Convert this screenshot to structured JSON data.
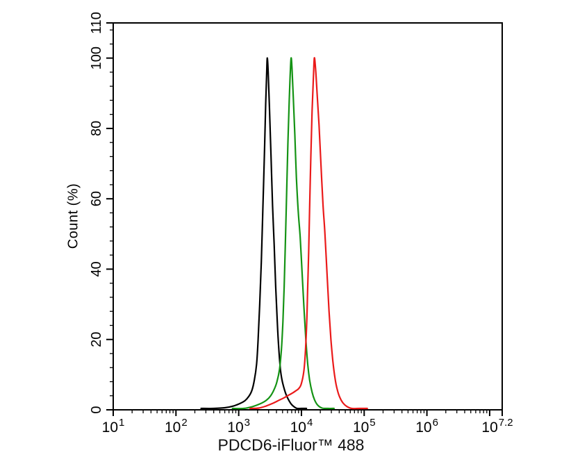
{
  "figure": {
    "background": "#ffffff"
  },
  "chart_data": {
    "type": "line",
    "subtype": "flow-cytometry-histogram-overlay",
    "title": "",
    "xlabel": "PDCD6-iFluor™ 488",
    "ylabel": "Count (%)",
    "x_scale": "log10",
    "x_units": "fluorescence intensity (log10)",
    "xlim_log10": [
      1,
      7.2
    ],
    "ylim": [
      0,
      110
    ],
    "grid": false,
    "legend": "none",
    "x_major_ticks_log10": [
      1,
      2,
      3,
      4,
      5,
      6,
      7,
      7.2
    ],
    "x_minor_decades": [
      1,
      2,
      3,
      4,
      5,
      6
    ],
    "x_minor_offsets_log10": [
      0.301,
      0.477,
      0.602,
      0.699,
      0.778,
      0.845,
      0.903,
      0.954
    ],
    "x_tick_labels": [
      {
        "base": "10",
        "exp": "1",
        "at_log10": 1
      },
      {
        "base": "10",
        "exp": "2",
        "at_log10": 2
      },
      {
        "base": "10",
        "exp": "3",
        "at_log10": 3
      },
      {
        "base": "10",
        "exp": "4",
        "at_log10": 4
      },
      {
        "base": "10",
        "exp": "5",
        "at_log10": 5
      },
      {
        "base": "10",
        "exp": "6",
        "at_log10": 6
      },
      {
        "base": "10",
        "exp": "7.2",
        "at_log10": 7.2
      }
    ],
    "y_major_ticks": [
      0,
      20,
      40,
      60,
      80,
      100,
      110
    ],
    "y_minor_ticks": [
      4,
      8,
      12,
      16,
      24,
      28,
      32,
      36,
      44,
      48,
      52,
      56,
      64,
      68,
      72,
      76,
      84,
      88,
      92,
      96,
      104,
      108
    ],
    "axis_color": "#000000",
    "series": [
      {
        "id": "black",
        "name": "black histogram (leftmost peak)",
        "color": "#000000",
        "peak_percent": 100,
        "approx_peak_intensity": 2850,
        "approx_peak_log10": 3.455,
        "points_log10x_percent": [
          [
            2.4,
            0
          ],
          [
            2.6,
            0.2
          ],
          [
            2.78,
            0.6
          ],
          [
            2.92,
            1.1
          ],
          [
            3.02,
            1.8
          ],
          [
            3.1,
            2.6
          ],
          [
            3.16,
            3.8
          ],
          [
            3.21,
            5.5
          ],
          [
            3.25,
            8.5
          ],
          [
            3.285,
            13
          ],
          [
            3.31,
            20
          ],
          [
            3.335,
            30
          ],
          [
            3.36,
            42
          ],
          [
            3.385,
            57
          ],
          [
            3.41,
            73
          ],
          [
            3.43,
            87
          ],
          [
            3.445,
            95
          ],
          [
            3.455,
            100
          ],
          [
            3.47,
            96
          ],
          [
            3.49,
            86
          ],
          [
            3.515,
            72
          ],
          [
            3.54,
            58
          ],
          [
            3.565,
            47
          ],
          [
            3.59,
            35
          ],
          [
            3.615,
            25
          ],
          [
            3.64,
            17
          ],
          [
            3.665,
            11.5
          ],
          [
            3.69,
            8.5
          ],
          [
            3.72,
            6.3
          ],
          [
            3.75,
            4.6
          ],
          [
            3.79,
            3.0
          ],
          [
            3.83,
            1.8
          ],
          [
            3.88,
            0.9
          ],
          [
            3.93,
            0.3
          ],
          [
            4.0,
            0.05
          ],
          [
            4.08,
            0
          ]
        ]
      },
      {
        "id": "green",
        "name": "green histogram (middle peak)",
        "color": "#149314",
        "peak_percent": 100,
        "approx_peak_intensity": 6840,
        "approx_peak_log10": 3.835,
        "points_log10x_percent": [
          [
            2.9,
            0
          ],
          [
            3.08,
            0.4
          ],
          [
            3.22,
            0.9
          ],
          [
            3.34,
            1.7
          ],
          [
            3.44,
            2.7
          ],
          [
            3.51,
            4.0
          ],
          [
            3.565,
            5.8
          ],
          [
            3.61,
            8.0
          ],
          [
            3.65,
            11.5
          ],
          [
            3.68,
            17
          ],
          [
            3.705,
            25
          ],
          [
            3.725,
            35
          ],
          [
            3.745,
            48
          ],
          [
            3.765,
            62
          ],
          [
            3.785,
            76
          ],
          [
            3.805,
            88
          ],
          [
            3.82,
            95
          ],
          [
            3.835,
            100
          ],
          [
            3.85,
            97
          ],
          [
            3.87,
            89
          ],
          [
            3.895,
            78
          ],
          [
            3.92,
            66
          ],
          [
            3.95,
            56
          ],
          [
            3.98,
            49
          ],
          [
            4.01,
            39
          ],
          [
            4.04,
            29
          ],
          [
            4.07,
            20
          ],
          [
            4.1,
            13
          ],
          [
            4.13,
            8.5
          ],
          [
            4.17,
            5.0
          ],
          [
            4.21,
            2.8
          ],
          [
            4.26,
            1.3
          ],
          [
            4.33,
            0.5
          ],
          [
            4.42,
            0.1
          ],
          [
            4.52,
            0
          ]
        ]
      },
      {
        "id": "red",
        "name": "red histogram (rightmost peak)",
        "color": "#ea1a1a",
        "peak_percent": 100,
        "approx_peak_intensity": 16000,
        "approx_peak_log10": 4.205,
        "points_log10x_percent": [
          [
            3.18,
            0
          ],
          [
            3.32,
            0.5
          ],
          [
            3.44,
            1.1
          ],
          [
            3.55,
            1.9
          ],
          [
            3.64,
            2.7
          ],
          [
            3.72,
            3.4
          ],
          [
            3.79,
            4.1
          ],
          [
            3.86,
            4.8
          ],
          [
            3.91,
            5.4
          ],
          [
            3.955,
            6.0
          ],
          [
            3.99,
            7.0
          ],
          [
            4.02,
            9.0
          ],
          [
            4.045,
            12
          ],
          [
            4.065,
            17
          ],
          [
            4.085,
            25
          ],
          [
            4.1,
            35
          ],
          [
            4.115,
            45
          ],
          [
            4.13,
            57
          ],
          [
            4.15,
            72
          ],
          [
            4.17,
            85
          ],
          [
            4.19,
            94
          ],
          [
            4.205,
            100
          ],
          [
            4.225,
            97
          ],
          [
            4.25,
            90
          ],
          [
            4.28,
            81
          ],
          [
            4.31,
            70
          ],
          [
            4.345,
            58
          ],
          [
            4.375,
            50
          ],
          [
            4.41,
            38
          ],
          [
            4.44,
            28
          ],
          [
            4.47,
            20
          ],
          [
            4.5,
            14
          ],
          [
            4.535,
            9
          ],
          [
            4.57,
            5.8
          ],
          [
            4.61,
            3.6
          ],
          [
            4.66,
            2.0
          ],
          [
            4.72,
            1.0
          ],
          [
            4.8,
            0.4
          ],
          [
            4.92,
            0.1
          ],
          [
            5.05,
            0
          ]
        ]
      }
    ]
  }
}
